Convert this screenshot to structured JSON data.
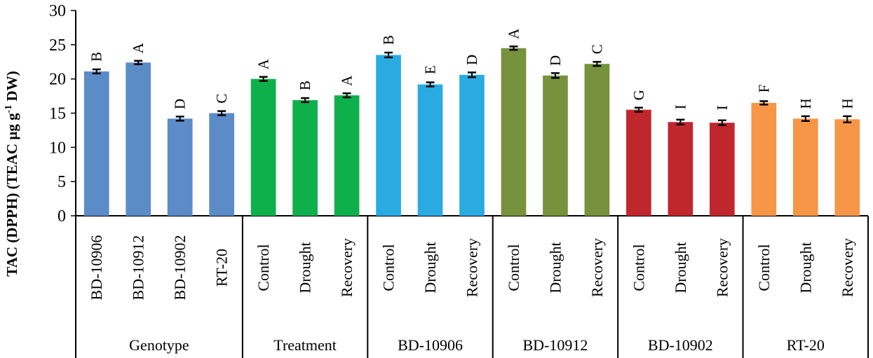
{
  "chart_data": {
    "type": "bar",
    "ylabel": "TAC (DPPH) (TEAC µg g",
    "ylabel_sup": "-1",
    "ylabel_tail": " DW)",
    "ylim": [
      0,
      30
    ],
    "yticks": [
      0,
      5,
      10,
      15,
      20,
      25,
      30
    ],
    "grid": false,
    "groups": [
      {
        "name": "Genotype",
        "color": "#5B8CC8",
        "bars": [
          {
            "category": "BD-10906",
            "value": 21.1,
            "error": 0.3,
            "letter": "B"
          },
          {
            "category": "BD-10912",
            "value": 22.4,
            "error": 0.25,
            "letter": "A"
          },
          {
            "category": "BD-10902",
            "value": 14.2,
            "error": 0.3,
            "letter": "D"
          },
          {
            "category": "RT-20",
            "value": 15.0,
            "error": 0.3,
            "letter": "C"
          }
        ]
      },
      {
        "name": "Treatment",
        "color": "#0EB04C",
        "bars": [
          {
            "category": "Control",
            "value": 20.0,
            "error": 0.3,
            "letter": "A"
          },
          {
            "category": "Drought",
            "value": 16.9,
            "error": 0.3,
            "letter": "B"
          },
          {
            "category": "Recovery",
            "value": 17.6,
            "error": 0.3,
            "letter": "A"
          }
        ]
      },
      {
        "name": "BD-10906",
        "color": "#29ABE2",
        "bars": [
          {
            "category": "Control",
            "value": 23.5,
            "error": 0.35,
            "letter": "B"
          },
          {
            "category": "Drought",
            "value": 19.2,
            "error": 0.3,
            "letter": "E"
          },
          {
            "category": "Recovery",
            "value": 20.6,
            "error": 0.35,
            "letter": "D"
          }
        ]
      },
      {
        "name": "BD-10912",
        "color": "#76923C",
        "bars": [
          {
            "category": "Control",
            "value": 24.5,
            "error": 0.25,
            "letter": "A"
          },
          {
            "category": "Drought",
            "value": 20.5,
            "error": 0.35,
            "letter": "D"
          },
          {
            "category": "Recovery",
            "value": 22.2,
            "error": 0.3,
            "letter": "C"
          }
        ]
      },
      {
        "name": "BD-10902",
        "color": "#C0272D",
        "bars": [
          {
            "category": "Control",
            "value": 15.5,
            "error": 0.3,
            "letter": "G"
          },
          {
            "category": "Drought",
            "value": 13.7,
            "error": 0.35,
            "letter": "I"
          },
          {
            "category": "Recovery",
            "value": 13.6,
            "error": 0.35,
            "letter": "I"
          }
        ]
      },
      {
        "name": "RT-20",
        "color": "#F79646",
        "bars": [
          {
            "category": "Control",
            "value": 16.5,
            "error": 0.25,
            "letter": "F"
          },
          {
            "category": "Drought",
            "value": 14.2,
            "error": 0.35,
            "letter": "H"
          },
          {
            "category": "Recovery",
            "value": 14.1,
            "error": 0.45,
            "letter": "H"
          }
        ]
      }
    ]
  }
}
